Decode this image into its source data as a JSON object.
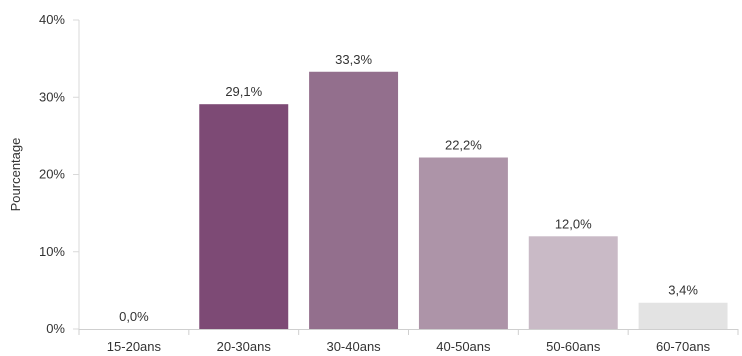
{
  "chart_data": {
    "type": "bar",
    "title": "",
    "xlabel": "",
    "ylabel": "Pourcentage",
    "ylim": [
      0,
      40
    ],
    "yticks": [
      0,
      10,
      20,
      30,
      40
    ],
    "ytick_labels": [
      "0%",
      "10%",
      "20%",
      "30%",
      "40%"
    ],
    "categories": [
      "15-20ans",
      "20-30ans",
      "30-40ans",
      "40-50ans",
      "50-60ans",
      "60-70ans"
    ],
    "values": [
      0.0,
      29.1,
      33.3,
      22.2,
      12.0,
      3.4
    ],
    "value_labels": [
      "0,0%",
      "29,1%",
      "33,3%",
      "22,2%",
      "12,0%",
      "3,4%"
    ],
    "colors": [
      "#7d4a75",
      "#7d4a75",
      "#936f8d",
      "#ad94a8",
      "#c9bac6",
      "#e3e3e3"
    ],
    "grid": false,
    "legend": "none"
  }
}
